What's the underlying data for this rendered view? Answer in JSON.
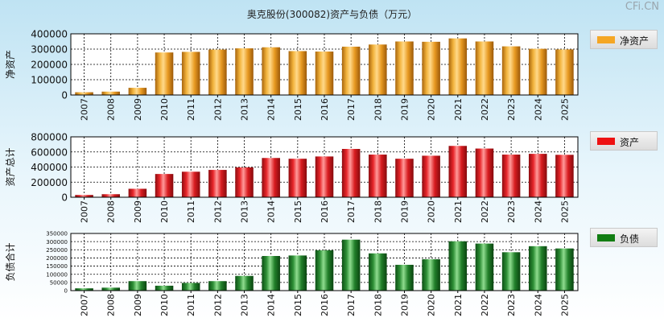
{
  "title": "奥克股份(300082)资产与负债（万元）",
  "watermark": "CFi.CN",
  "colors": {
    "net_assets": "#f5a623",
    "assets": "#e8262a",
    "liabilities": "#1e7d2a"
  },
  "chart_data": [
    {
      "type": "bar",
      "ylabel": "净资产",
      "legend": "净资产",
      "categories": [
        "2007",
        "2008",
        "2009",
        "2010",
        "2011",
        "2012",
        "2013",
        "2014",
        "2015",
        "2016",
        "2017",
        "2018",
        "2019",
        "2020",
        "2021",
        "2022",
        "2023",
        "2024",
        "2025"
      ],
      "values": [
        18000,
        22000,
        47000,
        278000,
        282000,
        297000,
        305000,
        312000,
        287000,
        284000,
        316000,
        330000,
        350000,
        348000,
        370000,
        350000,
        318000,
        302000,
        298000
      ],
      "ylim": [
        0,
        400000
      ],
      "yticks": [
        "0",
        "100000",
        "200000",
        "300000",
        "400000"
      ]
    },
    {
      "type": "bar",
      "ylabel": "资产总计",
      "legend": "资产",
      "categories": [
        "2007",
        "2008",
        "2009",
        "2010",
        "2011",
        "2012",
        "2013",
        "2014",
        "2015",
        "2016",
        "2017",
        "2018",
        "2019",
        "2020",
        "2021",
        "2022",
        "2023",
        "2024",
        "2025"
      ],
      "values": [
        30000,
        40000,
        112000,
        308000,
        338000,
        362000,
        395000,
        520000,
        510000,
        540000,
        640000,
        565000,
        510000,
        550000,
        680000,
        645000,
        565000,
        575000,
        562000
      ],
      "ylim": [
        0,
        800000
      ],
      "yticks": [
        "0",
        "200000",
        "400000",
        "600000",
        "800000"
      ]
    },
    {
      "type": "bar",
      "ylabel": "负债合计",
      "legend": "负债",
      "categories": [
        "2007",
        "2008",
        "2009",
        "2010",
        "2011",
        "2012",
        "2013",
        "2014",
        "2015",
        "2016",
        "2017",
        "2018",
        "2019",
        "2020",
        "2021",
        "2022",
        "2023",
        "2024",
        "2025"
      ],
      "values": [
        14000,
        18000,
        58000,
        30000,
        47000,
        58000,
        90000,
        212000,
        215000,
        247000,
        312000,
        228000,
        158000,
        192000,
        302000,
        288000,
        235000,
        272000,
        258000
      ],
      "ylim": [
        0,
        350000
      ],
      "yticks": [
        "0",
        "50000",
        "100000",
        "150000",
        "200000",
        "250000",
        "300000",
        "350000"
      ]
    }
  ]
}
